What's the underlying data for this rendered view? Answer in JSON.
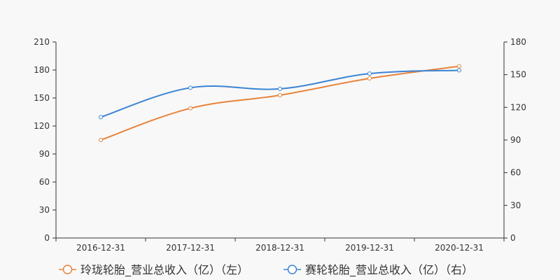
{
  "chart_data": {
    "type": "line",
    "categories": [
      "2016-12-31",
      "2017-12-31",
      "2018-12-31",
      "2019-12-31",
      "2020-12-31"
    ],
    "y_left": {
      "ylim": [
        0,
        210
      ],
      "ticks": [
        "0",
        "30",
        "60",
        "90",
        "120",
        "150",
        "180",
        "210"
      ]
    },
    "y_right": {
      "ylim": [
        0,
        180
      ],
      "ticks": [
        "0",
        "30",
        "60",
        "90",
        "120",
        "150",
        "180"
      ]
    },
    "series": [
      {
        "name": "玲珑轮胎_营业总收入（亿）（左）",
        "axis": "left",
        "color": "#e8833a",
        "values": [
          105,
          139,
          153,
          171,
          184
        ]
      },
      {
        "name": "赛轮轮胎_营业总收入（亿）（右）",
        "axis": "right",
        "color": "#3c84d4",
        "values": [
          111,
          138,
          137,
          151,
          154
        ]
      }
    ],
    "grid": false,
    "legend_position": "bottom"
  }
}
